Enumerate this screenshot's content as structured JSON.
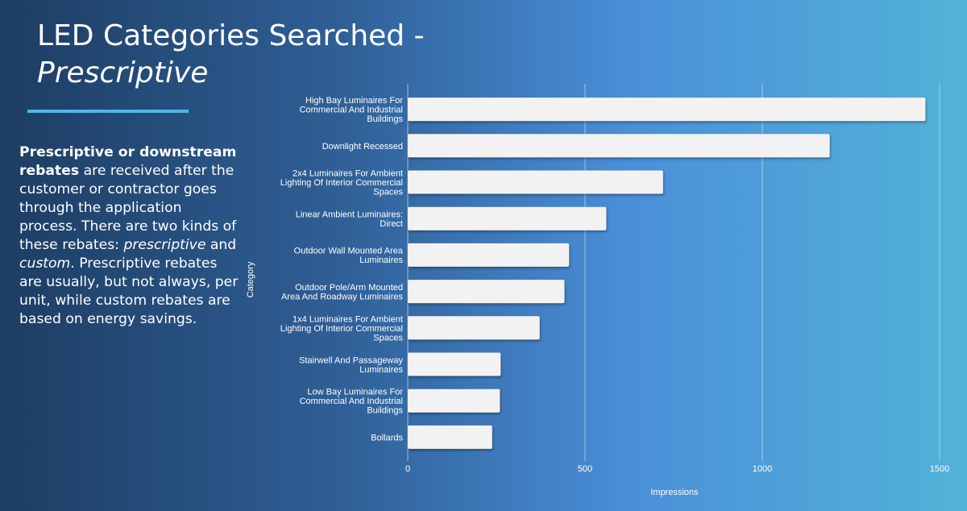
{
  "slide": {
    "title_line1": "LED Categories Searched -",
    "title_line2": "Prescriptive",
    "body": {
      "bold_lead": "Prescriptive or downstream rebates",
      "text1": " are received after the customer or contractor goes through the application process. There are two kinds of these rebates: ",
      "italic1": "prescriptive",
      "text2": " and ",
      "italic2": "custom",
      "text3": ". Prescriptive rebates are usually, but not always, per unit, while custom rebates are based on energy savings."
    }
  },
  "colors": {
    "bar_fill": "#f2f2f2",
    "accent": "#4fb9e3",
    "gridline": "#c9d6e6"
  },
  "chart_data": {
    "type": "bar",
    "orientation": "horizontal",
    "xlabel": "Impressions",
    "ylabel": "Category",
    "xlim": [
      0,
      1500
    ],
    "xticks": [
      0,
      500,
      1000,
      1500
    ],
    "grid": true,
    "categories": [
      [
        "High Bay Luminaires For",
        "Commercial And Industrial",
        "Buildings"
      ],
      [
        "Downlight Recessed"
      ],
      [
        "2x4 Luminaires For Ambient",
        "Lighting Of Interior Commercial",
        "Spaces"
      ],
      [
        "Linear Ambient Luminaires:",
        "Direct"
      ],
      [
        "Outdoor Wall Mounted Area",
        "Luminaires"
      ],
      [
        "Outdoor Pole/Arm Mounted",
        "Area And Roadway Luminaires"
      ],
      [
        "1x4 Luminaires For Ambient",
        "Lighting Of Interior Commercial",
        "Spaces"
      ],
      [
        "Stairwell And Passageway",
        "Luminaires"
      ],
      [
        "Low Bay Luminaires For",
        "Commercial And Industrial",
        "Buildings"
      ],
      [
        "Bollards"
      ]
    ],
    "values": [
      1460,
      1190,
      720,
      560,
      455,
      442,
      372,
      262,
      260,
      238
    ]
  }
}
